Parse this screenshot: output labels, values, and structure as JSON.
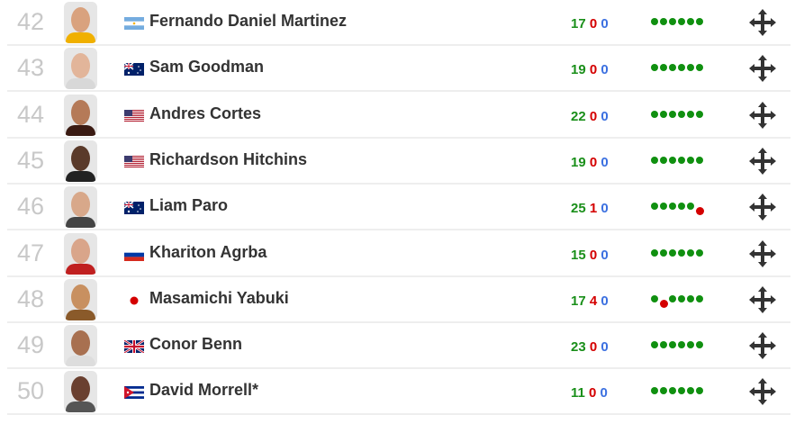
{
  "colors": {
    "win": "#109010",
    "loss": "#d40000",
    "draw": "#3a6fe0",
    "rank": "#c8c8c8"
  },
  "rows": [
    {
      "rank": "42",
      "flag": "argentina",
      "name": "Fernando Daniel Martinez",
      "wins": "17",
      "losses": "0",
      "draws": "0",
      "form": [
        "W",
        "W",
        "W",
        "W",
        "W",
        "W"
      ],
      "skin": "#d9a27e",
      "shirt": "#f0b000"
    },
    {
      "rank": "43",
      "flag": "australia",
      "name": "Sam Goodman",
      "wins": "19",
      "losses": "0",
      "draws": "0",
      "form": [
        "W",
        "W",
        "W",
        "W",
        "W",
        "W"
      ],
      "skin": "#e2b59a",
      "shirt": "#d8d8d8"
    },
    {
      "rank": "44",
      "flag": "usa",
      "name": "Andres Cortes",
      "wins": "22",
      "losses": "0",
      "draws": "0",
      "form": [
        "W",
        "W",
        "W",
        "W",
        "W",
        "W"
      ],
      "skin": "#b57a58",
      "shirt": "#3a1a12"
    },
    {
      "rank": "45",
      "flag": "usa",
      "name": "Richardson Hitchins",
      "wins": "19",
      "losses": "0",
      "draws": "0",
      "form": [
        "W",
        "W",
        "W",
        "W",
        "W",
        "W"
      ],
      "skin": "#5a3a2a",
      "shirt": "#222"
    },
    {
      "rank": "46",
      "flag": "australia",
      "name": "Liam Paro",
      "wins": "25",
      "losses": "1",
      "draws": "0",
      "form": [
        "W",
        "W",
        "W",
        "W",
        "W",
        "L"
      ],
      "skin": "#d8a88a",
      "shirt": "#444"
    },
    {
      "rank": "47",
      "flag": "russia",
      "name": "Khariton Agrba",
      "wins": "15",
      "losses": "0",
      "draws": "0",
      "form": [
        "W",
        "W",
        "W",
        "W",
        "W",
        "W"
      ],
      "skin": "#d9a58a",
      "shirt": "#c02020"
    },
    {
      "rank": "48",
      "flag": "japan",
      "name": "Masamichi Yabuki",
      "wins": "17",
      "losses": "4",
      "draws": "0",
      "form": [
        "W",
        "L",
        "W",
        "W",
        "W",
        "W"
      ],
      "skin": "#c89060",
      "shirt": "#8a5a2a"
    },
    {
      "rank": "49",
      "flag": "uk",
      "name": "Conor Benn",
      "wins": "23",
      "losses": "0",
      "draws": "0",
      "form": [
        "W",
        "W",
        "W",
        "W",
        "W",
        "W"
      ],
      "skin": "#a87050",
      "shirt": "#ddd"
    },
    {
      "rank": "50",
      "flag": "cuba",
      "name": "David Morrell*",
      "wins": "11",
      "losses": "0",
      "draws": "0",
      "form": [
        "W",
        "W",
        "W",
        "W",
        "W",
        "W"
      ],
      "skin": "#6a4030",
      "shirt": "#555"
    }
  ]
}
